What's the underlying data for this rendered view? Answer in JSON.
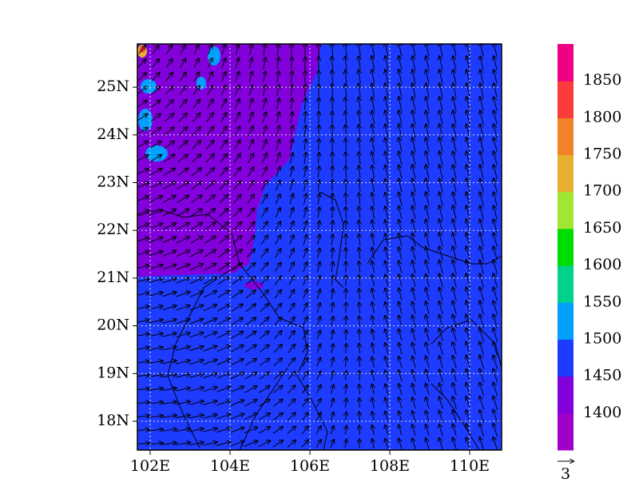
{
  "map": {
    "lat_labels": [
      "18N",
      "19N",
      "20N",
      "21N",
      "22N",
      "23N",
      "24N",
      "25N"
    ],
    "lon_labels": [
      "102E",
      "104E",
      "106E",
      "108E",
      "110E"
    ],
    "colorbar": {
      "levels": [
        1400,
        1450,
        1500,
        1550,
        1600,
        1650,
        1700,
        1750,
        1800,
        1850
      ],
      "colors": [
        "#a000c8",
        "#8200dc",
        "#1e3cff",
        "#00a0ff",
        "#00d28c",
        "#00dc00",
        "#a0e632",
        "#e6af2d",
        "#f08228",
        "#fa3c3c",
        "#f00082"
      ]
    },
    "reference_vector": "3"
  }
}
